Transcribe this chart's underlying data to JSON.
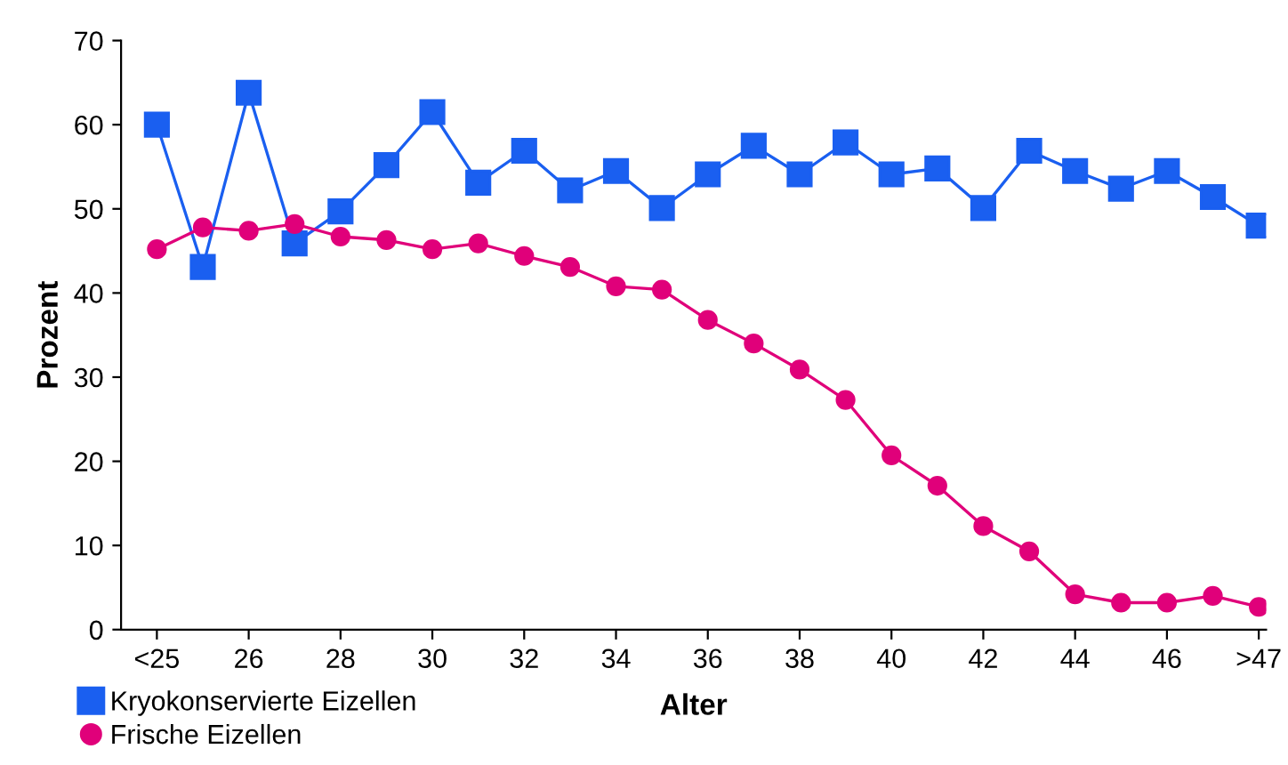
{
  "chart_data": {
    "type": "line",
    "xlabel": "Alter",
    "ylabel": "Prozent",
    "categories": [
      "<25",
      null,
      "26",
      null,
      "28",
      null,
      "30",
      null,
      "32",
      null,
      "34",
      null,
      "36",
      null,
      "38",
      null,
      "40",
      null,
      "42",
      null,
      "44",
      null,
      "46",
      null,
      ">47"
    ],
    "series": [
      {
        "name": "Kryokonservierte Eizellen",
        "color": "#1a5ff0",
        "marker": "square",
        "values": [
          60.0,
          43.1,
          63.8,
          45.9,
          49.7,
          55.2,
          61.5,
          53.1,
          56.9,
          52.2,
          54.5,
          50.1,
          54.1,
          57.5,
          54.1,
          57.9,
          54.1,
          54.8,
          50.1,
          56.9,
          54.5,
          52.4,
          54.5,
          51.4,
          48.0
        ]
      },
      {
        "name": "Frische Eizellen",
        "color": "#e0007a",
        "marker": "circle",
        "values": [
          45.2,
          47.8,
          47.4,
          48.2,
          46.7,
          46.3,
          45.2,
          45.9,
          44.4,
          43.1,
          40.8,
          40.4,
          36.8,
          34.0,
          30.9,
          27.3,
          20.7,
          17.1,
          12.3,
          9.3,
          4.2,
          3.2,
          3.2,
          4.0,
          2.7
        ]
      }
    ],
    "ylim": [
      0,
      70
    ],
    "yticks": [
      0,
      10,
      20,
      30,
      40,
      50,
      60,
      70
    ],
    "grid": false,
    "legend": "bottom left",
    "line_style": "solid"
  }
}
